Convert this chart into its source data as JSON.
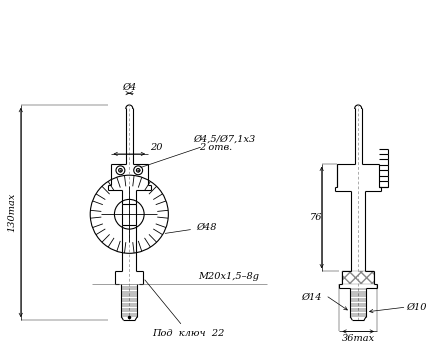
{
  "bg_color": "#ffffff",
  "line_color": "#000000",
  "font_size": 7,
  "annotations": {
    "d4": "Ø4",
    "20": "20",
    "d45_d71x3": "Ø4,5/Ø7,1х3",
    "2otv": "2 отв.",
    "130max": "130max",
    "d48": "Ø48",
    "M20x15_8g": "M20х1,5–8g",
    "pod_kluch": "Под  ключ  22",
    "76": "76",
    "d14": "Ø14",
    "d10": "Ø10",
    "36max": "36max"
  }
}
